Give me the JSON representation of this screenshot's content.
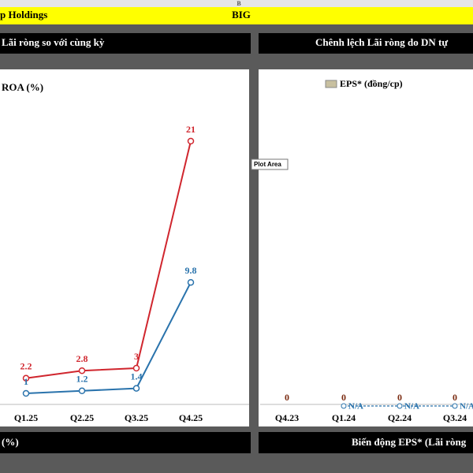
{
  "sheet": {
    "column_header": "B",
    "company": "p Holdings",
    "ticker": "BIG",
    "left_header": "Lãi ròng so với cùng kỳ",
    "right_header": "Chênh lệch Lãi ròng do DN tự",
    "bottom_left": "(%)",
    "bottom_right": "Biến động EPS* (Lãi ròng",
    "tooltip": "Plot Area"
  },
  "chart_data": [
    {
      "type": "line",
      "title": "ROA (%)",
      "categories": [
        "Q1.25",
        "Q2.25",
        "Q3.25",
        "Q4.25"
      ],
      "ylim": [
        0,
        25
      ],
      "series": [
        {
          "color": "#d0262e",
          "values": [
            2.2,
            2.8,
            3.0,
            21.0
          ]
        },
        {
          "color": "#2a73ac",
          "values": [
            1.0,
            1.2,
            1.4,
            9.8
          ]
        }
      ]
    },
    {
      "type": "bar",
      "categories": [
        "Q4.23",
        "Q1.24",
        "Q2.24",
        "Q3.24"
      ],
      "ylim": [
        0,
        25
      ],
      "series": [
        {
          "name": "EPS* (đồng/cp)",
          "color": "#c8c0a0",
          "values": [
            0,
            0,
            0,
            0
          ]
        },
        {
          "color": "#2a73ac",
          "values": [
            null,
            null,
            null,
            null
          ],
          "value_labels": [
            null,
            "N/A",
            "N/A",
            "N/A"
          ]
        }
      ]
    }
  ]
}
